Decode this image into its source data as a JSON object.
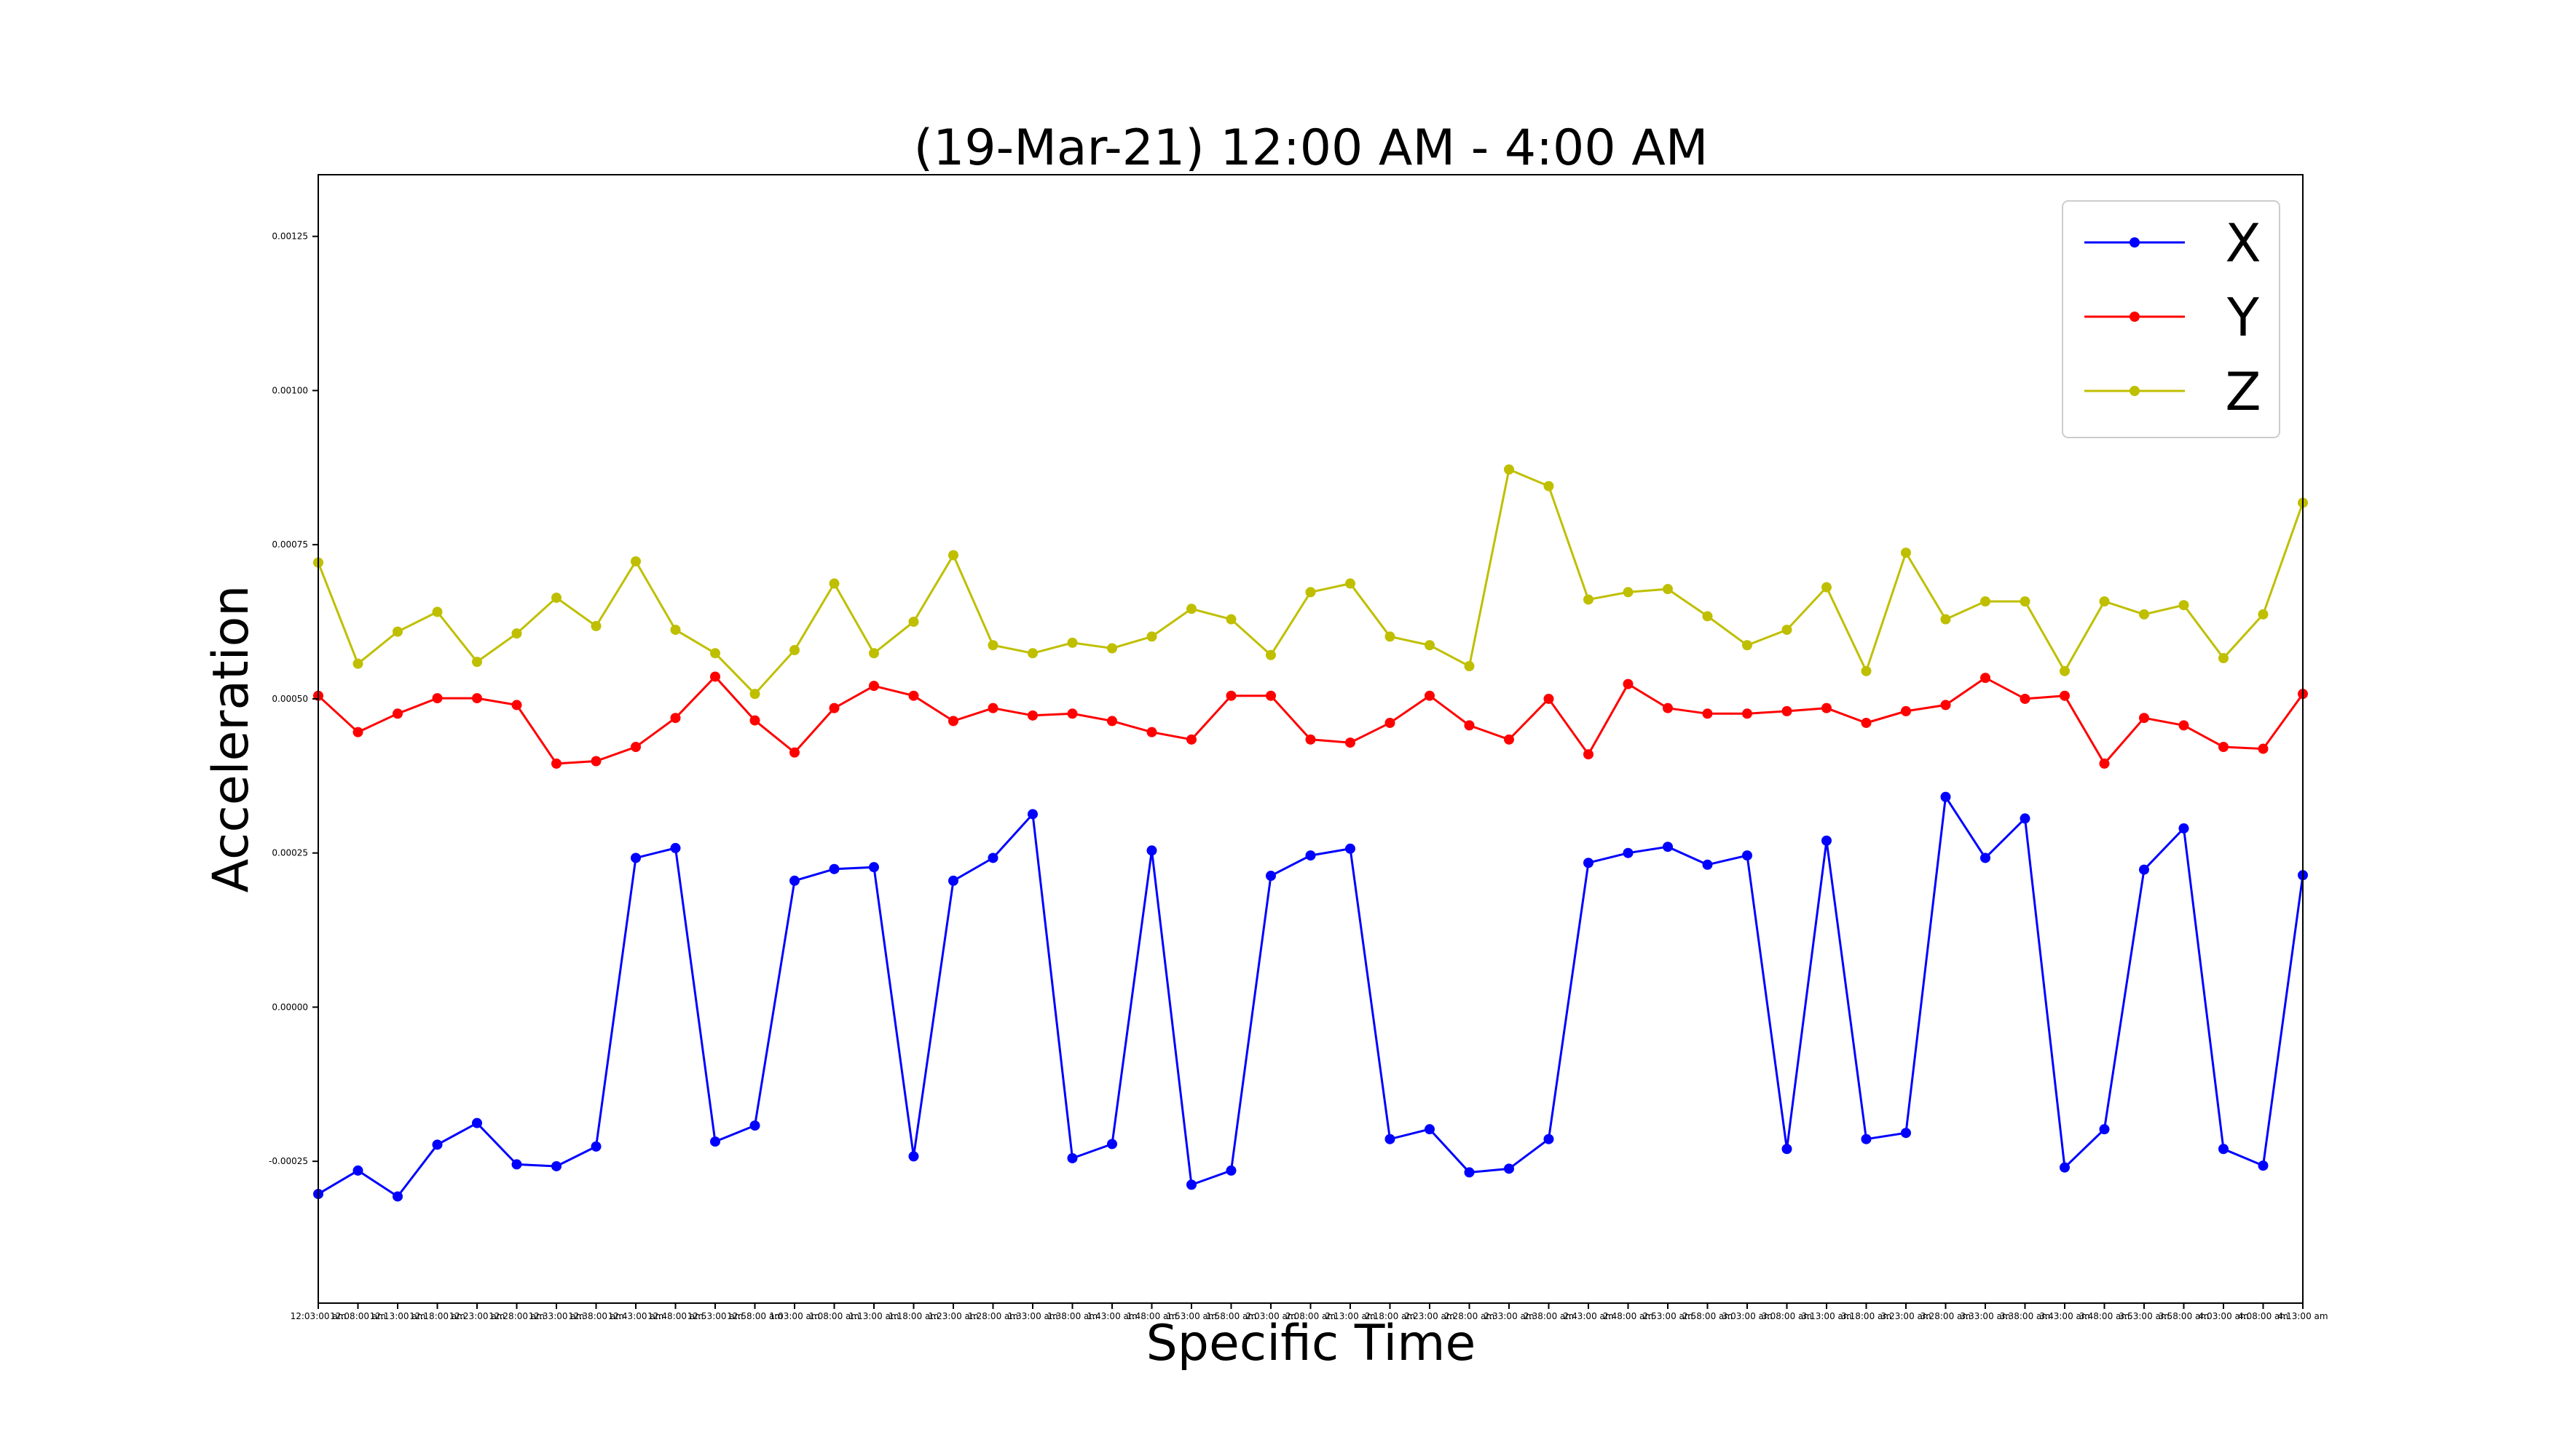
{
  "chart_data": {
    "type": "line",
    "title": "(19-Mar-21) 12:00 AM - 4:00 AM",
    "xlabel": "Specific Time",
    "ylabel": "Acceleration",
    "ylim": [
      -0.00048,
      0.00135
    ],
    "yticks": [
      "-0.00025",
      "0.00000",
      "0.00025",
      "0.00050",
      "0.00075",
      "0.00100",
      "0.00125"
    ],
    "ytick_values": [
      -0.00025,
      0.0,
      0.00025,
      0.0005,
      0.00075,
      0.001,
      0.00125
    ],
    "legend_position": "top-right",
    "grid": false,
    "x": [
      "12:03:00 am",
      "12:08:00 am",
      "12:13:00 am",
      "12:18:00 am",
      "12:23:00 am",
      "12:28:00 am",
      "12:33:00 am",
      "12:38:00 am",
      "12:43:00 am",
      "12:48:00 am",
      "12:53:00 am",
      "12:58:00 am",
      "1:03:00 am",
      "1:08:00 am",
      "1:13:00 am",
      "1:18:00 am",
      "1:23:00 am",
      "1:28:00 am",
      "1:33:00 am",
      "1:38:00 am",
      "1:43:00 am",
      "1:48:00 am",
      "1:53:00 am",
      "1:58:00 am",
      "2:03:00 am",
      "2:08:00 am",
      "2:13:00 am",
      "2:18:00 am",
      "2:23:00 am",
      "2:28:00 am",
      "2:33:00 am",
      "2:38:00 am",
      "2:43:00 am",
      "2:48:00 am",
      "2:53:00 am",
      "2:58:00 am",
      "3:03:00 am",
      "3:08:00 am",
      "3:13:00 am",
      "3:18:00 am",
      "3:23:00 am",
      "3:28:00 am",
      "3:33:00 am",
      "3:38:00 am",
      "3:43:00 am",
      "3:48:00 am",
      "3:53:00 am",
      "3:58:00 am",
      "4:03:00 am",
      "4:08:00 am",
      "4:13:00 am"
    ],
    "series": [
      {
        "name": "X",
        "color": "#0000ff",
        "values": [
          -0.000303,
          -0.000265,
          -0.000307,
          -0.000223,
          -0.000188,
          -0.000255,
          -0.000258,
          -0.000226,
          0.000242,
          0.000258,
          -0.000218,
          -0.000192,
          0.000205,
          0.000224,
          0.000227,
          -0.000242,
          0.000205,
          0.000242,
          0.000313,
          -0.000245,
          -0.000222,
          0.000254,
          -0.000288,
          -0.000265,
          0.000213,
          0.000246,
          0.000257,
          -0.000214,
          -0.000198,
          -0.000268,
          -0.000262,
          -0.000214,
          0.000234,
          0.00025,
          0.00026,
          0.000231,
          0.000246,
          -0.00023,
          0.00027,
          -0.000214,
          -0.000204,
          0.000341,
          0.000242,
          0.000306,
          -0.00026,
          -0.000198,
          0.000223,
          0.00029,
          -0.00023,
          -0.000257,
          0.000214
        ]
      },
      {
        "name": "Y",
        "color": "#ff0000",
        "values": [
          0.000505,
          0.000446,
          0.000476,
          0.000501,
          0.000501,
          0.00049,
          0.000395,
          0.000399,
          0.000422,
          0.000469,
          0.000536,
          0.000465,
          0.000413,
          0.000485,
          0.000521,
          0.000505,
          0.000464,
          0.000485,
          0.000473,
          0.000476,
          0.000464,
          0.000446,
          0.000434,
          0.000505,
          0.000505,
          0.000434,
          0.000429,
          0.000461,
          0.000505,
          0.000457,
          0.000434,
          0.0005,
          0.00041,
          0.000524,
          0.000485,
          0.000476,
          0.000476,
          0.00048,
          0.000485,
          0.000461,
          0.00048,
          0.00049,
          0.000534,
          0.0005,
          0.000505,
          0.000395,
          0.000469,
          0.000457,
          0.000422,
          0.000419,
          0.000508
        ]
      },
      {
        "name": "Z",
        "color": "#bfbf00",
        "values": [
          0.000721,
          0.000557,
          0.000609,
          0.000641,
          0.00056,
          0.000606,
          0.000664,
          0.000618,
          0.000723,
          0.000612,
          0.000574,
          0.000508,
          0.000579,
          0.000687,
          0.000574,
          0.000625,
          0.000733,
          0.000587,
          0.000574,
          0.000591,
          0.000582,
          0.000601,
          0.000646,
          0.000629,
          0.000571,
          0.000673,
          0.000687,
          0.000601,
          0.000587,
          0.000553,
          0.000872,
          0.000845,
          0.000661,
          0.000673,
          0.000678,
          0.000634,
          0.000587,
          0.000612,
          0.000681,
          0.000545,
          0.000737,
          0.000629,
          0.000658,
          0.000658,
          0.000545,
          0.000658,
          0.000637,
          0.000652,
          0.000566,
          0.000637,
          0.000818
        ]
      }
    ]
  }
}
